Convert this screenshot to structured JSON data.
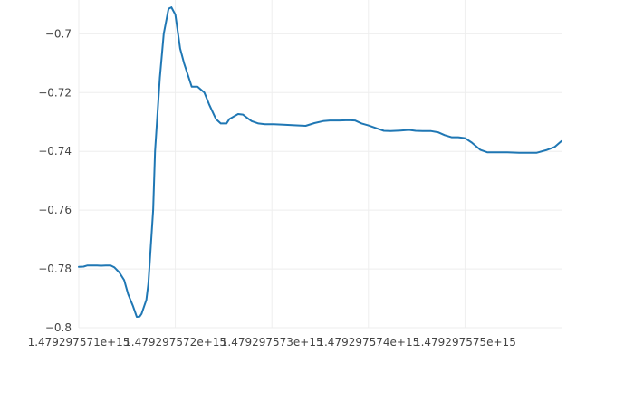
{
  "chart_data": {
    "type": "line",
    "title": "",
    "xlabel": "",
    "ylabel": "",
    "grid": true,
    "line_color": "#1f77b4",
    "grid_color": "#eeeeee",
    "axis_text_color": "#444444",
    "xlim": [
      1479297571.0,
      1479297576.0
    ],
    "ylim": [
      -0.8,
      -0.6885
    ],
    "x_tick_labels": [
      {
        "value": 1479297571,
        "label": "1.479297571e+15"
      },
      {
        "value": 1479297572,
        "label": "1.479297572e+15"
      },
      {
        "value": 1479297573,
        "label": "1.479297573e+15"
      },
      {
        "value": 1479297574,
        "label": "1.479297574e+15"
      },
      {
        "value": 1479297575,
        "label": "1.479297575e+15"
      }
    ],
    "y_tick_labels": [
      {
        "value": -0.8,
        "label": "−0.8"
      },
      {
        "value": -0.78,
        "label": "−0.78"
      },
      {
        "value": -0.76,
        "label": "−0.76"
      },
      {
        "value": -0.74,
        "label": "−0.74"
      },
      {
        "value": -0.72,
        "label": "−0.72"
      },
      {
        "value": -0.7,
        "label": "−0.7"
      }
    ],
    "series": [
      {
        "x": [
          1479297571.0,
          1479297571.05,
          1479297571.09,
          1479297571.19,
          1479297571.23,
          1479297571.28,
          1479297571.33,
          1479297571.37,
          1479297571.42,
          1479297571.47,
          1479297571.51,
          1479297571.56,
          1479297571.6,
          1479297571.63,
          1479297571.65,
          1479297571.7,
          1479297571.72,
          1479297571.77,
          1479297571.79,
          1479297571.84,
          1479297571.88,
          1479297571.93,
          1479297571.96,
          1479297572.0,
          1479297572.02,
          1479297572.05,
          1479297572.09,
          1479297572.14,
          1479297572.17,
          1479297572.21,
          1479297572.23,
          1479297572.3,
          1479297572.35,
          1479297572.42,
          1479297572.47,
          1479297572.53,
          1479297572.56,
          1479297572.65,
          1479297572.7,
          1479297572.74,
          1479297572.79,
          1479297572.86,
          1479297572.93,
          1479297573.02,
          1479297573.12,
          1479297573.21,
          1479297573.35,
          1479297573.44,
          1479297573.53,
          1479297573.6,
          1479297573.7,
          1479297573.79,
          1479297573.86,
          1479297573.93,
          1479297574.0,
          1479297574.09,
          1479297574.16,
          1479297574.23,
          1479297574.33,
          1479297574.42,
          1479297574.49,
          1479297574.56,
          1479297574.65,
          1479297574.72,
          1479297574.79,
          1479297574.86,
          1479297574.93,
          1479297575.0,
          1479297575.07,
          1479297575.16,
          1479297575.23,
          1479297575.33,
          1479297575.44,
          1479297575.56,
          1479297575.65,
          1479297575.74,
          1479297575.84,
          1479297575.93,
          1479297576.0
        ],
        "y": [
          -0.7793,
          -0.7792,
          -0.7788,
          -0.7788,
          -0.7789,
          -0.7788,
          -0.7788,
          -0.7795,
          -0.7812,
          -0.7838,
          -0.7885,
          -0.7925,
          -0.7963,
          -0.7962,
          -0.7953,
          -0.7905,
          -0.785,
          -0.76,
          -0.74,
          -0.715,
          -0.7,
          -0.6915,
          -0.691,
          -0.6935,
          -0.698,
          -0.705,
          -0.71,
          -0.715,
          -0.718,
          -0.718,
          -0.718,
          -0.72,
          -0.724,
          -0.729,
          -0.7305,
          -0.7305,
          -0.729,
          -0.7273,
          -0.7275,
          -0.7285,
          -0.7297,
          -0.7305,
          -0.7308,
          -0.7308,
          -0.7309,
          -0.7311,
          -0.7313,
          -0.7304,
          -0.7297,
          -0.7295,
          -0.7295,
          -0.7294,
          -0.7295,
          -0.7305,
          -0.7312,
          -0.7322,
          -0.733,
          -0.7331,
          -0.7329,
          -0.7327,
          -0.733,
          -0.7331,
          -0.7331,
          -0.7335,
          -0.7345,
          -0.7352,
          -0.7352,
          -0.7355,
          -0.737,
          -0.7395,
          -0.7403,
          -0.7403,
          -0.7403,
          -0.7405,
          -0.7405,
          -0.7405,
          -0.7396,
          -0.7385,
          -0.7365
        ]
      }
    ]
  }
}
